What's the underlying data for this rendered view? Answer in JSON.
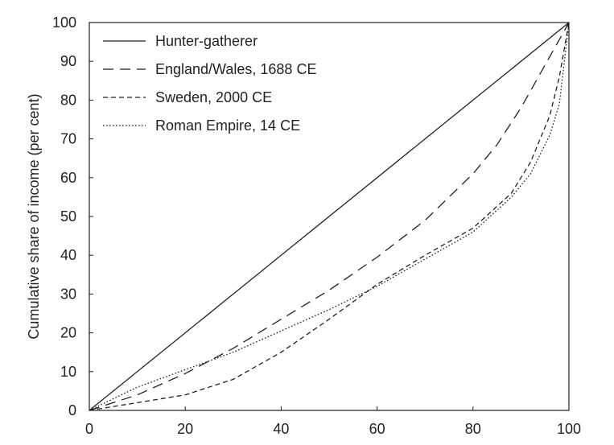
{
  "chart_data": {
    "type": "line",
    "title": "",
    "xlabel": "",
    "ylabel": "Cumulative share of income (per cent)",
    "xlim": [
      0,
      100
    ],
    "ylim": [
      0,
      100
    ],
    "xticks": [
      0,
      20,
      40,
      60,
      80,
      100
    ],
    "yticks": [
      0,
      10,
      20,
      30,
      40,
      50,
      60,
      70,
      80,
      90,
      100
    ],
    "grid": false,
    "legend_position": "top-left",
    "series": [
      {
        "name": "Hunter-gatherer",
        "dash": "solid",
        "x": [
          0,
          100
        ],
        "y": [
          0,
          100
        ]
      },
      {
        "name": "England/Wales, 1688 CE",
        "dash": "long-dash",
        "x": [
          0,
          10,
          20,
          30,
          40,
          50,
          60,
          70,
          80,
          85,
          90,
          95,
          100
        ],
        "y": [
          0,
          4,
          9.5,
          16,
          23.5,
          31,
          39.5,
          49,
          61,
          68.5,
          78,
          89,
          100
        ]
      },
      {
        "name": "Sweden, 2000 CE",
        "dash": "short-dash",
        "x": [
          0,
          10,
          20,
          30,
          40,
          50,
          60,
          70,
          80,
          88,
          92,
          96,
          98,
          100
        ],
        "y": [
          0,
          2,
          4,
          8,
          15,
          23.5,
          32.5,
          40,
          47,
          56,
          64,
          76,
          86,
          100
        ]
      },
      {
        "name": "Roman Empire, 14 CE",
        "dash": "dotted",
        "x": [
          0,
          10,
          20,
          30,
          40,
          50,
          60,
          70,
          80,
          88,
          92,
          96,
          98,
          100
        ],
        "y": [
          0,
          6,
          10.5,
          15,
          20.5,
          26,
          32,
          39,
          46,
          55,
          61,
          71,
          79,
          100
        ]
      }
    ]
  }
}
